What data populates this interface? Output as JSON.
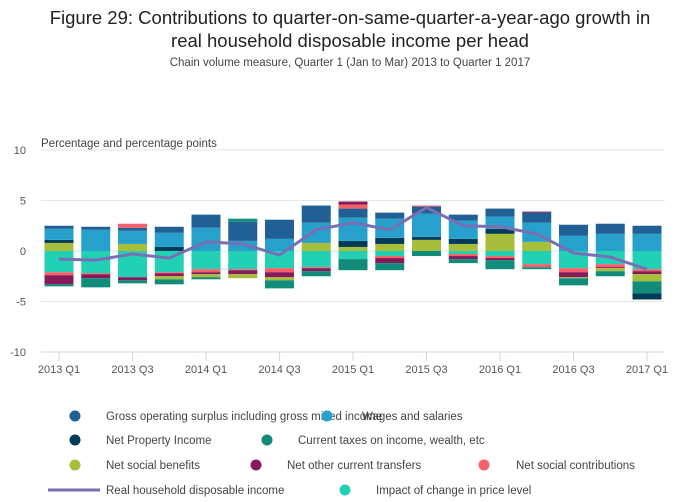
{
  "chart_data": {
    "type": "bar",
    "stacked": true,
    "title": "Figure 29: Contributions to quarter-on-same-quarter-a-year-ago growth in real household disposable income per head",
    "title_lines": [
      "Figure 29: Contributions to quarter-on-same-quarter-a-year-ago growth in",
      "real household disposable income per head"
    ],
    "subtitle": "Chain volume measure, Quarter 1 (Jan to Mar) 2013 to Quarter 1 2017",
    "ylabel": "Percentage and percentage points",
    "xlabel": "",
    "ylim": [
      -10,
      10
    ],
    "yticks": [
      10,
      5,
      0,
      -5,
      -10
    ],
    "grid": true,
    "legend_position": "bottom",
    "categories": [
      "2013 Q1",
      "2013 Q2",
      "2013 Q3",
      "2013 Q4",
      "2014 Q1",
      "2014 Q2",
      "2014 Q3",
      "2014 Q4",
      "2015 Q1",
      "2015 Q2",
      "2015 Q3",
      "2015 Q4",
      "2016 Q1",
      "2016 Q2",
      "2016 Q3",
      "2016 Q4",
      "2017 Q1"
    ],
    "xtick_labels": [
      "2013 Q1",
      "2013 Q3",
      "2014 Q1",
      "2014 Q3",
      "2015 Q1",
      "2015 Q3",
      "2016 Q1",
      "2016 Q3",
      "2017 Q1"
    ],
    "series": [
      {
        "name": "Gross operating surplus including gross mixed income",
        "color": "#206095",
        "kind": "bar",
        "values": [
          0.3,
          0.3,
          0.3,
          0.6,
          1.3,
          1.9,
          1.9,
          1.7,
          0.9,
          0.6,
          0.7,
          0.6,
          0.8,
          1.0,
          1.1,
          1.0,
          0.8
        ]
      },
      {
        "name": "Wages and salaries",
        "color": "#27a0cc",
        "kind": "bar",
        "values": [
          1.1,
          2.1,
          1.3,
          1.4,
          2.3,
          1.0,
          1.2,
          2.0,
          2.3,
          1.9,
          2.3,
          1.8,
          1.2,
          1.9,
          1.5,
          1.7,
          1.7
        ]
      },
      {
        "name": "Net Property Income",
        "color": "#003c57",
        "kind": "bar",
        "values": [
          0.3,
          0.0,
          0.0,
          0.4,
          0.0,
          0.0,
          0.0,
          0.0,
          0.6,
          0.6,
          0.3,
          0.5,
          0.5,
          0.0,
          0.0,
          0.0,
          -0.6
        ]
      },
      {
        "name": "Current taxes on income, wealth, etc",
        "color": "#118c7b",
        "kind": "bar",
        "values": [
          -0.2,
          -0.9,
          -0.3,
          -0.5,
          -0.2,
          0.3,
          -0.8,
          -0.5,
          -1.1,
          -0.7,
          -0.5,
          -0.4,
          -0.9,
          -0.2,
          -0.7,
          -0.5,
          -1.2
        ]
      },
      {
        "name": "Net social benefits",
        "color": "#a8bd3a",
        "kind": "bar",
        "values": [
          0.8,
          0.0,
          0.7,
          -0.3,
          -0.3,
          -0.4,
          -0.3,
          0.8,
          0.4,
          0.7,
          1.1,
          0.7,
          1.7,
          0.9,
          -0.1,
          -0.3,
          -0.7
        ]
      },
      {
        "name": "Net other current transfers",
        "color": "#871a5b",
        "kind": "bar",
        "values": [
          -0.9,
          -0.4,
          -0.3,
          -0.3,
          -0.2,
          -0.4,
          -0.5,
          -0.3,
          0.3,
          -0.5,
          0.0,
          -0.3,
          -0.2,
          0.1,
          -0.5,
          -0.1,
          -0.3
        ]
      },
      {
        "name": "Net social contributions",
        "color": "#f66068",
        "kind": "bar",
        "values": [
          -0.3,
          -0.1,
          0.4,
          -0.1,
          -0.3,
          -0.1,
          -0.4,
          -0.1,
          0.4,
          -0.2,
          0.1,
          -0.2,
          -0.2,
          -0.3,
          -0.4,
          -0.3,
          -0.2
        ]
      },
      {
        "name": "Impact of change in price level",
        "color": "#22d0b6",
        "kind": "bar",
        "values": [
          -2.1,
          -2.2,
          -2.6,
          -2.1,
          -1.8,
          -1.8,
          -1.7,
          -1.6,
          -0.8,
          -0.5,
          0.0,
          -0.3,
          -0.5,
          -1.3,
          -1.7,
          -1.3,
          -1.8
        ]
      },
      {
        "name": "Real household disposable income",
        "color": "#7a6eb5",
        "kind": "line",
        "values": [
          -0.8,
          -0.9,
          -0.3,
          -0.7,
          0.9,
          0.7,
          -0.4,
          2.1,
          2.8,
          2.1,
          4.3,
          2.5,
          2.4,
          1.7,
          -0.2,
          -0.6,
          -1.8
        ]
      }
    ],
    "legend": [
      {
        "label": "Gross operating surplus including gross mixed income",
        "color": "#206095",
        "symbol": "circle"
      },
      {
        "label": "Wages and salaries",
        "color": "#27a0cc",
        "symbol": "circle"
      },
      {
        "label": "Net Property Income",
        "color": "#003c57",
        "symbol": "circle"
      },
      {
        "label": "Current taxes on income, wealth, etc",
        "color": "#118c7b",
        "symbol": "circle"
      },
      {
        "label": "Net social benefits",
        "color": "#a8bd3a",
        "symbol": "circle"
      },
      {
        "label": "Net other current transfers",
        "color": "#871a5b",
        "symbol": "circle"
      },
      {
        "label": "Net social contributions",
        "color": "#f66068",
        "symbol": "circle"
      },
      {
        "label": "Real household disposable income",
        "color": "#7a6eb5",
        "symbol": "line"
      },
      {
        "label": "Impact of change in price level",
        "color": "#22d0b6",
        "symbol": "circle"
      }
    ]
  }
}
